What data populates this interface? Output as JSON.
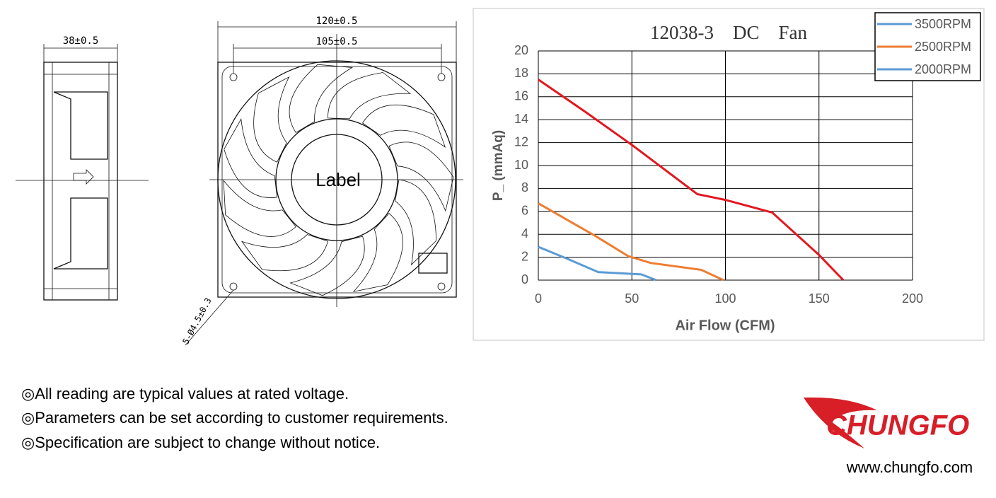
{
  "drawing": {
    "side_width": "38±0.5",
    "front_width": "120±0.5",
    "hole_spacing": "105±0.5",
    "hub_label": "Label",
    "mount_holes": "5-Ø4.5±0.3"
  },
  "chart_data": {
    "type": "line",
    "title": "12038-3　DC　Fan",
    "x_label": "Air Flow (CFM)",
    "y_label": "P_ (mmAq)",
    "xlim": [
      0,
      200
    ],
    "xticks": [
      0,
      50,
      100,
      150,
      200
    ],
    "ylim": [
      0,
      20
    ],
    "yticks": [
      0,
      2,
      4,
      6,
      8,
      10,
      12,
      14,
      16,
      18,
      20
    ],
    "grid": true,
    "legend": "top-right",
    "series": [
      {
        "name": "3500RPM",
        "color": "#e3171f",
        "legend_color": "#5b9bd5",
        "x": [
          0,
          25,
          50,
          85,
          100,
          125,
          150,
          163
        ],
        "values": [
          17.5,
          14.7,
          11.8,
          7.5,
          7,
          5.9,
          2.2,
          0
        ]
      },
      {
        "name": "2500RPM",
        "color": "#ed7d31",
        "legend_color": "#ed7d31",
        "x": [
          0,
          15,
          30,
          48,
          60,
          87,
          99
        ],
        "values": [
          6.7,
          5.3,
          3.9,
          2.1,
          1.5,
          0.9,
          0
        ]
      },
      {
        "name": "2000RPM",
        "color": "#5b9bd5",
        "legend_color": "#5b9bd5",
        "x": [
          0,
          15,
          32,
          55,
          63
        ],
        "values": [
          2.9,
          1.9,
          0.7,
          0.5,
          0
        ]
      }
    ]
  },
  "notes": [
    "◎All reading are typical values at rated voltage.",
    "◎Parameters can be set according to customer requirements.",
    "◎Specification are subject to change without notice."
  ],
  "brand": {
    "logo": "CHUNGFO",
    "url": "www.chungfo.com"
  }
}
